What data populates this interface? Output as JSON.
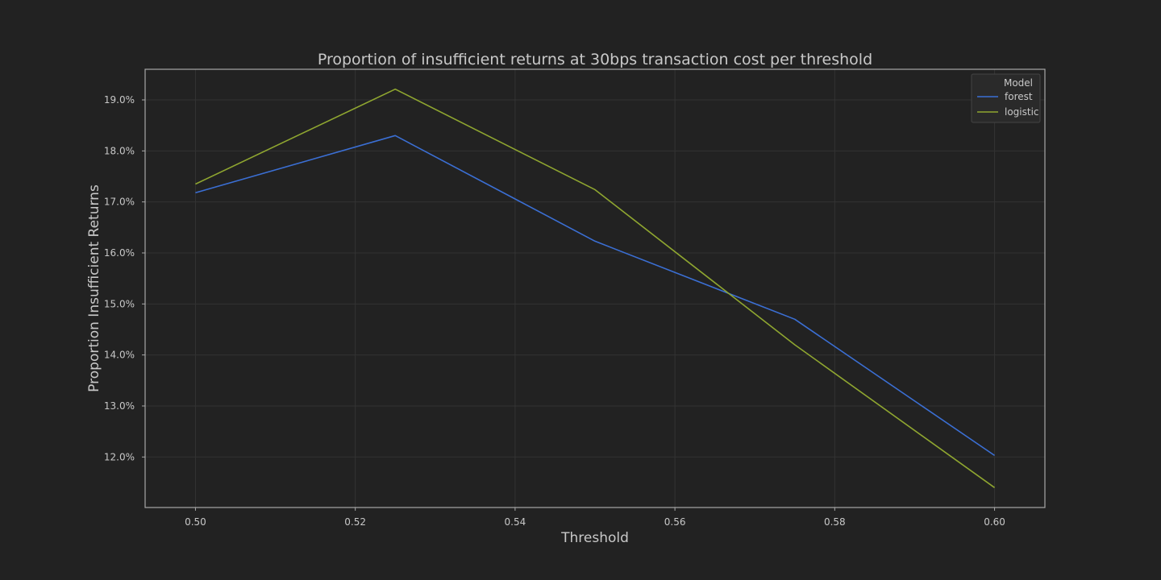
{
  "chart_data": {
    "type": "line",
    "title": "Proportion of insufficient returns at 30bps transaction cost per threshold",
    "xlabel": "Threshold",
    "ylabel": "Proportion Insufficient Returns",
    "x": [
      0.5,
      0.525,
      0.55,
      0.575,
      0.6
    ],
    "xlim": [
      0.4937,
      0.6063
    ],
    "ylim": [
      0.1101,
      0.196
    ],
    "x_ticks": [
      0.5,
      0.52,
      0.54,
      0.56,
      0.58,
      0.6
    ],
    "x_tick_labels": [
      "0.50",
      "0.52",
      "0.54",
      "0.56",
      "0.58",
      "0.60"
    ],
    "y_ticks": [
      0.12,
      0.13,
      0.14,
      0.15,
      0.16,
      0.17,
      0.18,
      0.19
    ],
    "y_tick_labels": [
      "12.0%",
      "13.0%",
      "14.0%",
      "15.0%",
      "16.0%",
      "17.0%",
      "18.0%",
      "19.0%"
    ],
    "grid": true,
    "legend": {
      "title": "Model",
      "placement": "top-right"
    },
    "series": [
      {
        "name": "forest",
        "color": "#3b6fd4",
        "values": [
          0.1718,
          0.183,
          0.1623,
          0.147,
          0.1203
        ]
      },
      {
        "name": "logistic",
        "color": "#8fa630",
        "values": [
          0.1735,
          0.1921,
          0.1724,
          0.142,
          0.114
        ]
      }
    ]
  },
  "colors": {
    "background": "#222222",
    "grid": "#333333",
    "frame": "#a8a8a8",
    "text": "#c8c8c8"
  }
}
